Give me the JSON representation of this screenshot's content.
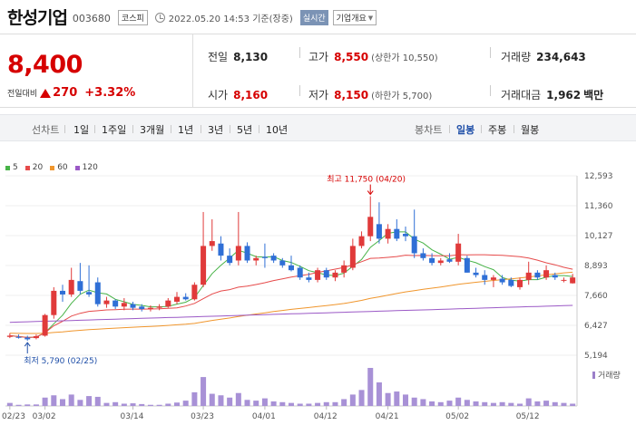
{
  "header": {
    "name": "한성기업",
    "code": "003680",
    "market": "코스피",
    "datetime": "2022.05.20 14:53 기준(장중)",
    "realtime": "실시간",
    "overview": "기업개요"
  },
  "summary": {
    "price": "8,400",
    "change_label": "전일대비",
    "change": "270",
    "change_rate": "+3.32%",
    "prev_close": {
      "label": "전일",
      "value": "8,130"
    },
    "open": {
      "label": "시가",
      "value": "8,160"
    },
    "high": {
      "label": "고가",
      "value": "8,550",
      "sub": "(상한가 10,550)"
    },
    "low": {
      "label": "저가",
      "value": "8,150",
      "sub": "(하한가 5,700)"
    },
    "volume": {
      "label": "거래량",
      "value": "234,643"
    },
    "amount": {
      "label": "거래대금",
      "value": "1,962",
      "unit": "백만"
    }
  },
  "tabs": {
    "line_label": "선차트",
    "line": [
      "1일",
      "1주일",
      "3개월",
      "1년",
      "3년",
      "5년",
      "10년"
    ],
    "candle_label": "봉차트",
    "candle": [
      "일봉",
      "주봉",
      "월봉"
    ],
    "active_candle": "일봉"
  },
  "legend": [
    {
      "label": "5",
      "color": "#47b347"
    },
    {
      "label": "20",
      "color": "#e64b4b"
    },
    {
      "label": "60",
      "color": "#f0962d"
    },
    {
      "label": "120",
      "color": "#9b59c6"
    }
  ],
  "chart_data": {
    "type": "candlestick",
    "y_ticks": [
      "12,593",
      "11,360",
      "10,127",
      "8,893",
      "7,660",
      "6,427",
      "5,194"
    ],
    "y_range": [
      5194,
      12593
    ],
    "x_ticks": [
      "02/23",
      "03/02",
      "03/14",
      "03/23",
      "04/01",
      "04/12",
      "04/21",
      "05/02",
      "05/12"
    ],
    "high_annotation": "최고 11,750 (04/20)",
    "low_annotation": "최저 5,790 (02/25)",
    "volume_label": "거래량",
    "up_color": "#e03a3a",
    "down_color": "#2f6fd6",
    "candles": [
      {
        "o": 5950,
        "h": 6100,
        "l": 5900,
        "c": 6000
      },
      {
        "o": 5950,
        "h": 6050,
        "l": 5880,
        "c": 5930
      },
      {
        "o": 5920,
        "h": 6000,
        "l": 5790,
        "c": 5850
      },
      {
        "o": 5900,
        "h": 6050,
        "l": 5850,
        "c": 5980
      },
      {
        "o": 6000,
        "h": 6900,
        "l": 5960,
        "c": 6850
      },
      {
        "o": 6850,
        "h": 8000,
        "l": 6700,
        "c": 7850
      },
      {
        "o": 7850,
        "h": 8100,
        "l": 7400,
        "c": 7700
      },
      {
        "o": 7700,
        "h": 8800,
        "l": 7600,
        "c": 8300
      },
      {
        "o": 8250,
        "h": 9000,
        "l": 7700,
        "c": 7850
      },
      {
        "o": 7800,
        "h": 8900,
        "l": 7600,
        "c": 7700
      },
      {
        "o": 8200,
        "h": 8400,
        "l": 7200,
        "c": 7300
      },
      {
        "o": 7300,
        "h": 7600,
        "l": 7150,
        "c": 7450
      },
      {
        "o": 7450,
        "h": 7500,
        "l": 7100,
        "c": 7200
      },
      {
        "o": 7200,
        "h": 7550,
        "l": 7050,
        "c": 7350
      },
      {
        "o": 7300,
        "h": 7400,
        "l": 7050,
        "c": 7150
      },
      {
        "o": 7200,
        "h": 7300,
        "l": 7000,
        "c": 7100
      },
      {
        "o": 7100,
        "h": 7250,
        "l": 7000,
        "c": 7150
      },
      {
        "o": 7150,
        "h": 7300,
        "l": 7050,
        "c": 7200
      },
      {
        "o": 7200,
        "h": 7550,
        "l": 7150,
        "c": 7450
      },
      {
        "o": 7400,
        "h": 7800,
        "l": 7300,
        "c": 7600
      },
      {
        "o": 7600,
        "h": 7750,
        "l": 7450,
        "c": 7500
      },
      {
        "o": 7500,
        "h": 8200,
        "l": 7450,
        "c": 8100
      },
      {
        "o": 8100,
        "h": 11100,
        "l": 8000,
        "c": 9700
      },
      {
        "o": 9700,
        "h": 10800,
        "l": 9500,
        "c": 9900
      },
      {
        "o": 9800,
        "h": 10100,
        "l": 9100,
        "c": 9300
      },
      {
        "o": 9300,
        "h": 9600,
        "l": 8900,
        "c": 9000
      },
      {
        "o": 9100,
        "h": 11100,
        "l": 8900,
        "c": 9700
      },
      {
        "o": 9700,
        "h": 9850,
        "l": 9000,
        "c": 9100
      },
      {
        "o": 9100,
        "h": 9300,
        "l": 8900,
        "c": 9200
      },
      {
        "o": 9250,
        "h": 9800,
        "l": 8800,
        "c": 9200
      },
      {
        "o": 9300,
        "h": 9400,
        "l": 9000,
        "c": 9100
      },
      {
        "o": 9100,
        "h": 9200,
        "l": 8800,
        "c": 8900
      },
      {
        "o": 8900,
        "h": 9300,
        "l": 8650,
        "c": 8700
      },
      {
        "o": 8800,
        "h": 8900,
        "l": 8300,
        "c": 8400
      },
      {
        "o": 8400,
        "h": 8600,
        "l": 8200,
        "c": 8300
      },
      {
        "o": 8300,
        "h": 8800,
        "l": 8200,
        "c": 8700
      },
      {
        "o": 8700,
        "h": 8800,
        "l": 8300,
        "c": 8400
      },
      {
        "o": 8400,
        "h": 8700,
        "l": 8250,
        "c": 8600
      },
      {
        "o": 8600,
        "h": 9100,
        "l": 8400,
        "c": 8900
      },
      {
        "o": 8800,
        "h": 10000,
        "l": 8700,
        "c": 9700
      },
      {
        "o": 9700,
        "h": 10300,
        "l": 9600,
        "c": 10100
      },
      {
        "o": 10100,
        "h": 11750,
        "l": 9900,
        "c": 10900
      },
      {
        "o": 10600,
        "h": 11500,
        "l": 9800,
        "c": 10000
      },
      {
        "o": 10000,
        "h": 10600,
        "l": 9800,
        "c": 10400
      },
      {
        "o": 10400,
        "h": 10800,
        "l": 9900,
        "c": 10000
      },
      {
        "o": 10200,
        "h": 10500,
        "l": 9900,
        "c": 10100
      },
      {
        "o": 10100,
        "h": 11200,
        "l": 9200,
        "c": 9400
      },
      {
        "o": 9400,
        "h": 9600,
        "l": 9100,
        "c": 9200
      },
      {
        "o": 9200,
        "h": 9400,
        "l": 8900,
        "c": 9000
      },
      {
        "o": 9000,
        "h": 9200,
        "l": 8900,
        "c": 9100
      },
      {
        "o": 9150,
        "h": 9400,
        "l": 9000,
        "c": 9050
      },
      {
        "o": 9050,
        "h": 10200,
        "l": 8900,
        "c": 9800
      },
      {
        "o": 9200,
        "h": 9300,
        "l": 8600,
        "c": 8600
      },
      {
        "o": 8600,
        "h": 8800,
        "l": 8400,
        "c": 8500
      },
      {
        "o": 8500,
        "h": 8700,
        "l": 8100,
        "c": 8300
      },
      {
        "o": 8300,
        "h": 8500,
        "l": 8000,
        "c": 8400
      },
      {
        "o": 8350,
        "h": 8500,
        "l": 8100,
        "c": 8200
      },
      {
        "o": 8300,
        "h": 8400,
        "l": 8000,
        "c": 8050
      },
      {
        "o": 8000,
        "h": 8400,
        "l": 7900,
        "c": 8300
      },
      {
        "o": 8300,
        "h": 9050,
        "l": 8100,
        "c": 8600
      },
      {
        "o": 8600,
        "h": 8700,
        "l": 8300,
        "c": 8400
      },
      {
        "o": 8400,
        "h": 8900,
        "l": 8300,
        "c": 8700
      },
      {
        "o": 8500,
        "h": 8600,
        "l": 8300,
        "c": 8400
      },
      {
        "o": 8300,
        "h": 8400,
        "l": 8200,
        "c": 8300
      },
      {
        "o": 8160,
        "h": 8550,
        "l": 8150,
        "c": 8400
      }
    ],
    "volumes": [
      8,
      3,
      4,
      4,
      22,
      28,
      18,
      30,
      16,
      26,
      24,
      8,
      10,
      6,
      7,
      5,
      3,
      3,
      6,
      9,
      14,
      36,
      76,
      32,
      28,
      22,
      34,
      16,
      14,
      20,
      12,
      10,
      8,
      6,
      6,
      8,
      10,
      10,
      18,
      30,
      42,
      100,
      62,
      34,
      38,
      30,
      22,
      18,
      12,
      10,
      14,
      22,
      16,
      12,
      10,
      8,
      10,
      8,
      6,
      20,
      12,
      14,
      10,
      8,
      6
    ]
  }
}
